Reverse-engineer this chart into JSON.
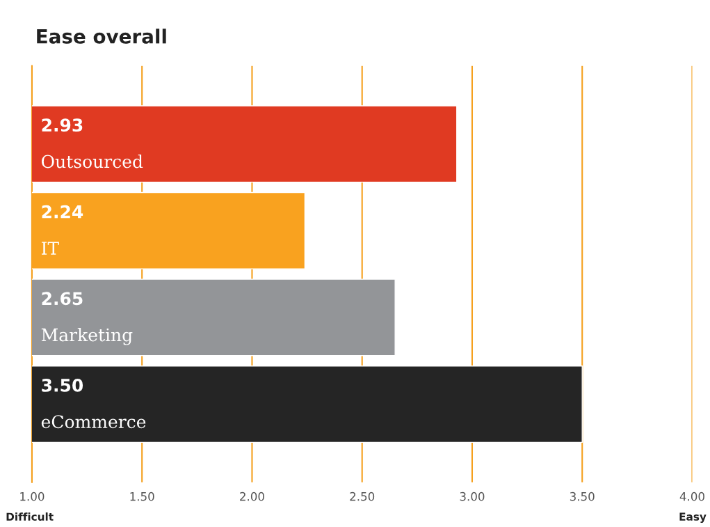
{
  "chart_data": {
    "type": "bar",
    "orientation": "horizontal",
    "title": "Ease overall",
    "categories": [
      "Outsourced",
      "IT",
      "Marketing",
      "eCommerce"
    ],
    "values": [
      2.93,
      2.24,
      2.65,
      3.5
    ],
    "value_labels": [
      "2.93",
      "2.24",
      "2.65",
      "3.50"
    ],
    "colors": [
      "#e03a22",
      "#f9a21f",
      "#939598",
      "#252525"
    ],
    "xlim": [
      1,
      4
    ],
    "xticks": [
      {
        "value": 1,
        "label": "1.00"
      },
      {
        "value": 1.5,
        "label": "1.50"
      },
      {
        "value": 2,
        "label": "2.00"
      },
      {
        "value": 2.5,
        "label": "2.50"
      },
      {
        "value": 3,
        "label": "3.00"
      },
      {
        "value": 3.5,
        "label": "3.50"
      },
      {
        "value": 4,
        "label": "4.00"
      }
    ],
    "grid": "x",
    "annotations": [
      "Difficult",
      "Easy"
    ]
  }
}
